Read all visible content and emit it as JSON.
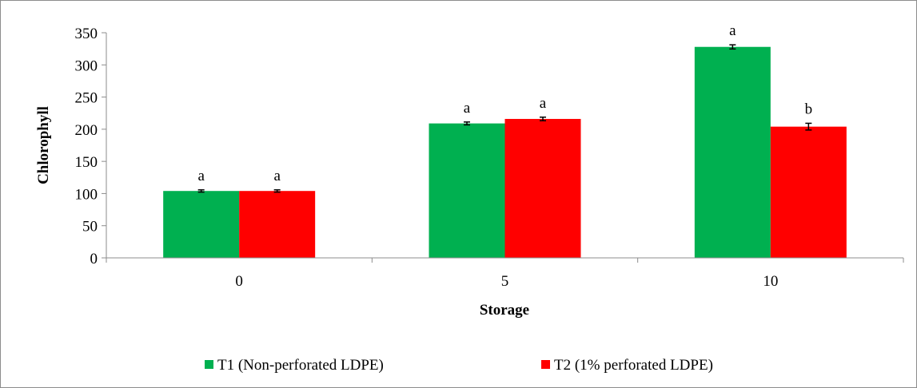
{
  "chart_data": {
    "type": "bar",
    "title": "",
    "xlabel": "Storage",
    "ylabel": "Chlorophyll",
    "ylim": [
      0,
      350
    ],
    "yticks": [
      0,
      50,
      100,
      150,
      200,
      250,
      300,
      350
    ],
    "grid": false,
    "legend_position": "bottom",
    "categories": [
      "0",
      "5",
      "10"
    ],
    "series": [
      {
        "name": "T1 (Non-perforated LDPE)",
        "color": "#00b050",
        "values": [
          104,
          209,
          328
        ],
        "errors": [
          0.5,
          1,
          2
        ],
        "labels": [
          "a",
          "a",
          "a"
        ]
      },
      {
        "name": "T2 (1% perforated LDPE)",
        "color": "#ff0000",
        "values": [
          104,
          216,
          204
        ],
        "errors": [
          0.5,
          1.5,
          4
        ],
        "labels": [
          "a",
          "a",
          "b"
        ]
      }
    ]
  }
}
